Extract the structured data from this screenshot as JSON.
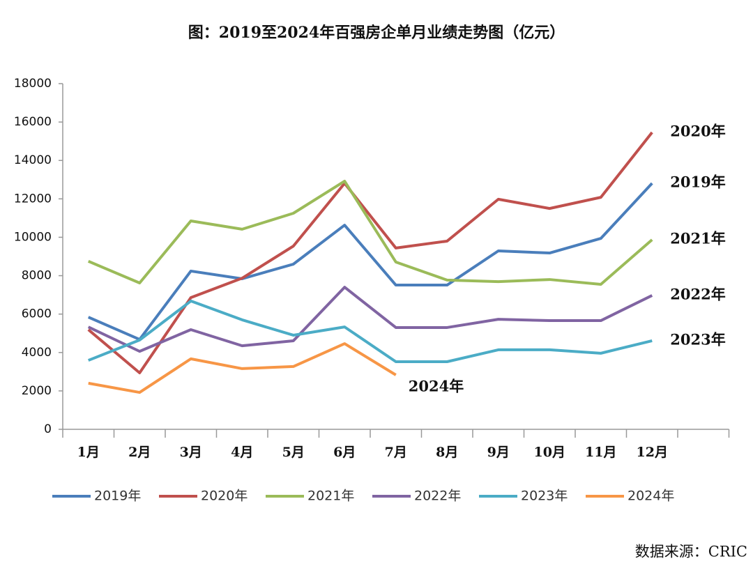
{
  "chart_data": {
    "type": "line",
    "title": "图：2019至2024年百强房企单月业绩走势图（亿元）",
    "source": "数据来源：CRIC",
    "categories": [
      "1月",
      "2月",
      "3月",
      "4月",
      "5月",
      "6月",
      "7月",
      "8月",
      "9月",
      "10月",
      "11月",
      "12月"
    ],
    "series": [
      {
        "name": "2019年",
        "color": "#4a7ebb",
        "values": [
          5840,
          4680,
          8240,
          7840,
          8600,
          10630,
          7510,
          7510,
          9290,
          9180,
          9940,
          12810
        ]
      },
      {
        "name": "2020年",
        "color": "#c0504d",
        "values": [
          5190,
          2940,
          6860,
          7870,
          9540,
          12810,
          9440,
          9800,
          11980,
          11500,
          12080,
          15460
        ]
      },
      {
        "name": "2021年",
        "color": "#9bbb59",
        "values": [
          8750,
          7620,
          10850,
          10420,
          11250,
          12920,
          8710,
          7770,
          7690,
          7800,
          7550,
          9870
        ]
      },
      {
        "name": "2022年",
        "color": "#8064a2",
        "values": [
          5330,
          4060,
          5190,
          4350,
          4610,
          7400,
          5300,
          5300,
          5730,
          5660,
          5660,
          6970
        ]
      },
      {
        "name": "2023年",
        "color": "#4bacc6",
        "values": [
          3590,
          4650,
          6680,
          5700,
          4900,
          5330,
          3520,
          3520,
          4140,
          4140,
          3960,
          4610
        ]
      },
      {
        "name": "2024年",
        "color": "#f79646",
        "values": [
          2400,
          1920,
          3670,
          3160,
          3270,
          4460,
          2830,
          null,
          null,
          null,
          null,
          null
        ]
      }
    ],
    "ylim": [
      0,
      18000
    ],
    "yticks": [
      0,
      2000,
      4000,
      6000,
      8000,
      10000,
      12000,
      14000,
      16000,
      18000
    ],
    "grid": false,
    "legend": "bottom"
  }
}
